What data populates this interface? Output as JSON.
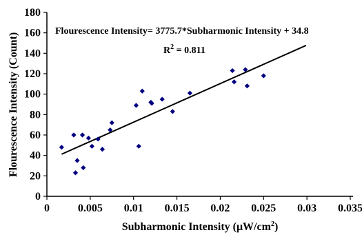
{
  "chart_data": {
    "type": "scatter",
    "xlabel_main": "Subharmonic Intensity (",
    "xlabel_unit": "μW/cm",
    "xlabel_sup": "2",
    "xlabel_end": ")",
    "ylabel": "Flourescence Intensity (Count)",
    "xlim": [
      0,
      0.035
    ],
    "ylim": [
      0,
      180
    ],
    "x_ticks": [
      0,
      0.005,
      0.01,
      0.015,
      0.02,
      0.025,
      0.03,
      0.035
    ],
    "y_ticks": [
      0,
      20,
      40,
      60,
      80,
      100,
      120,
      140,
      160,
      180
    ],
    "x_tick_labels": [
      "0",
      "0.005",
      "0.01",
      "0.015",
      "0.02",
      "0.025",
      "0.03",
      "0.035"
    ],
    "y_tick_labels": [
      "0",
      "20",
      "40",
      "60",
      "80",
      "100",
      "120",
      "140",
      "160",
      "180"
    ],
    "equation": "Flourescence Intensity= 3775.7*Subharmonic Intensity + 34.8",
    "r2_prefix": "R",
    "r2_sup": "2",
    "r2_value": " = 0.811",
    "grid": false,
    "marker_color": "#000080",
    "points": [
      {
        "x": 0.0017,
        "y": 48
      },
      {
        "x": 0.0031,
        "y": 60
      },
      {
        "x": 0.0033,
        "y": 23
      },
      {
        "x": 0.0035,
        "y": 35
      },
      {
        "x": 0.0041,
        "y": 60
      },
      {
        "x": 0.0042,
        "y": 28
      },
      {
        "x": 0.0048,
        "y": 57
      },
      {
        "x": 0.0052,
        "y": 49
      },
      {
        "x": 0.0059,
        "y": 56
      },
      {
        "x": 0.0064,
        "y": 46
      },
      {
        "x": 0.0073,
        "y": 65
      },
      {
        "x": 0.0075,
        "y": 72
      },
      {
        "x": 0.0103,
        "y": 89
      },
      {
        "x": 0.0106,
        "y": 49
      },
      {
        "x": 0.011,
        "y": 103
      },
      {
        "x": 0.012,
        "y": 92
      },
      {
        "x": 0.0121,
        "y": 91
      },
      {
        "x": 0.0133,
        "y": 95
      },
      {
        "x": 0.0145,
        "y": 83
      },
      {
        "x": 0.0165,
        "y": 101
      },
      {
        "x": 0.0214,
        "y": 123
      },
      {
        "x": 0.0216,
        "y": 112
      },
      {
        "x": 0.0229,
        "y": 124
      },
      {
        "x": 0.0231,
        "y": 108
      },
      {
        "x": 0.025,
        "y": 118
      }
    ],
    "trendline": {
      "slope": 3775.7,
      "intercept": 34.8,
      "x_start": 0.0017,
      "x_end": 0.0299
    }
  }
}
